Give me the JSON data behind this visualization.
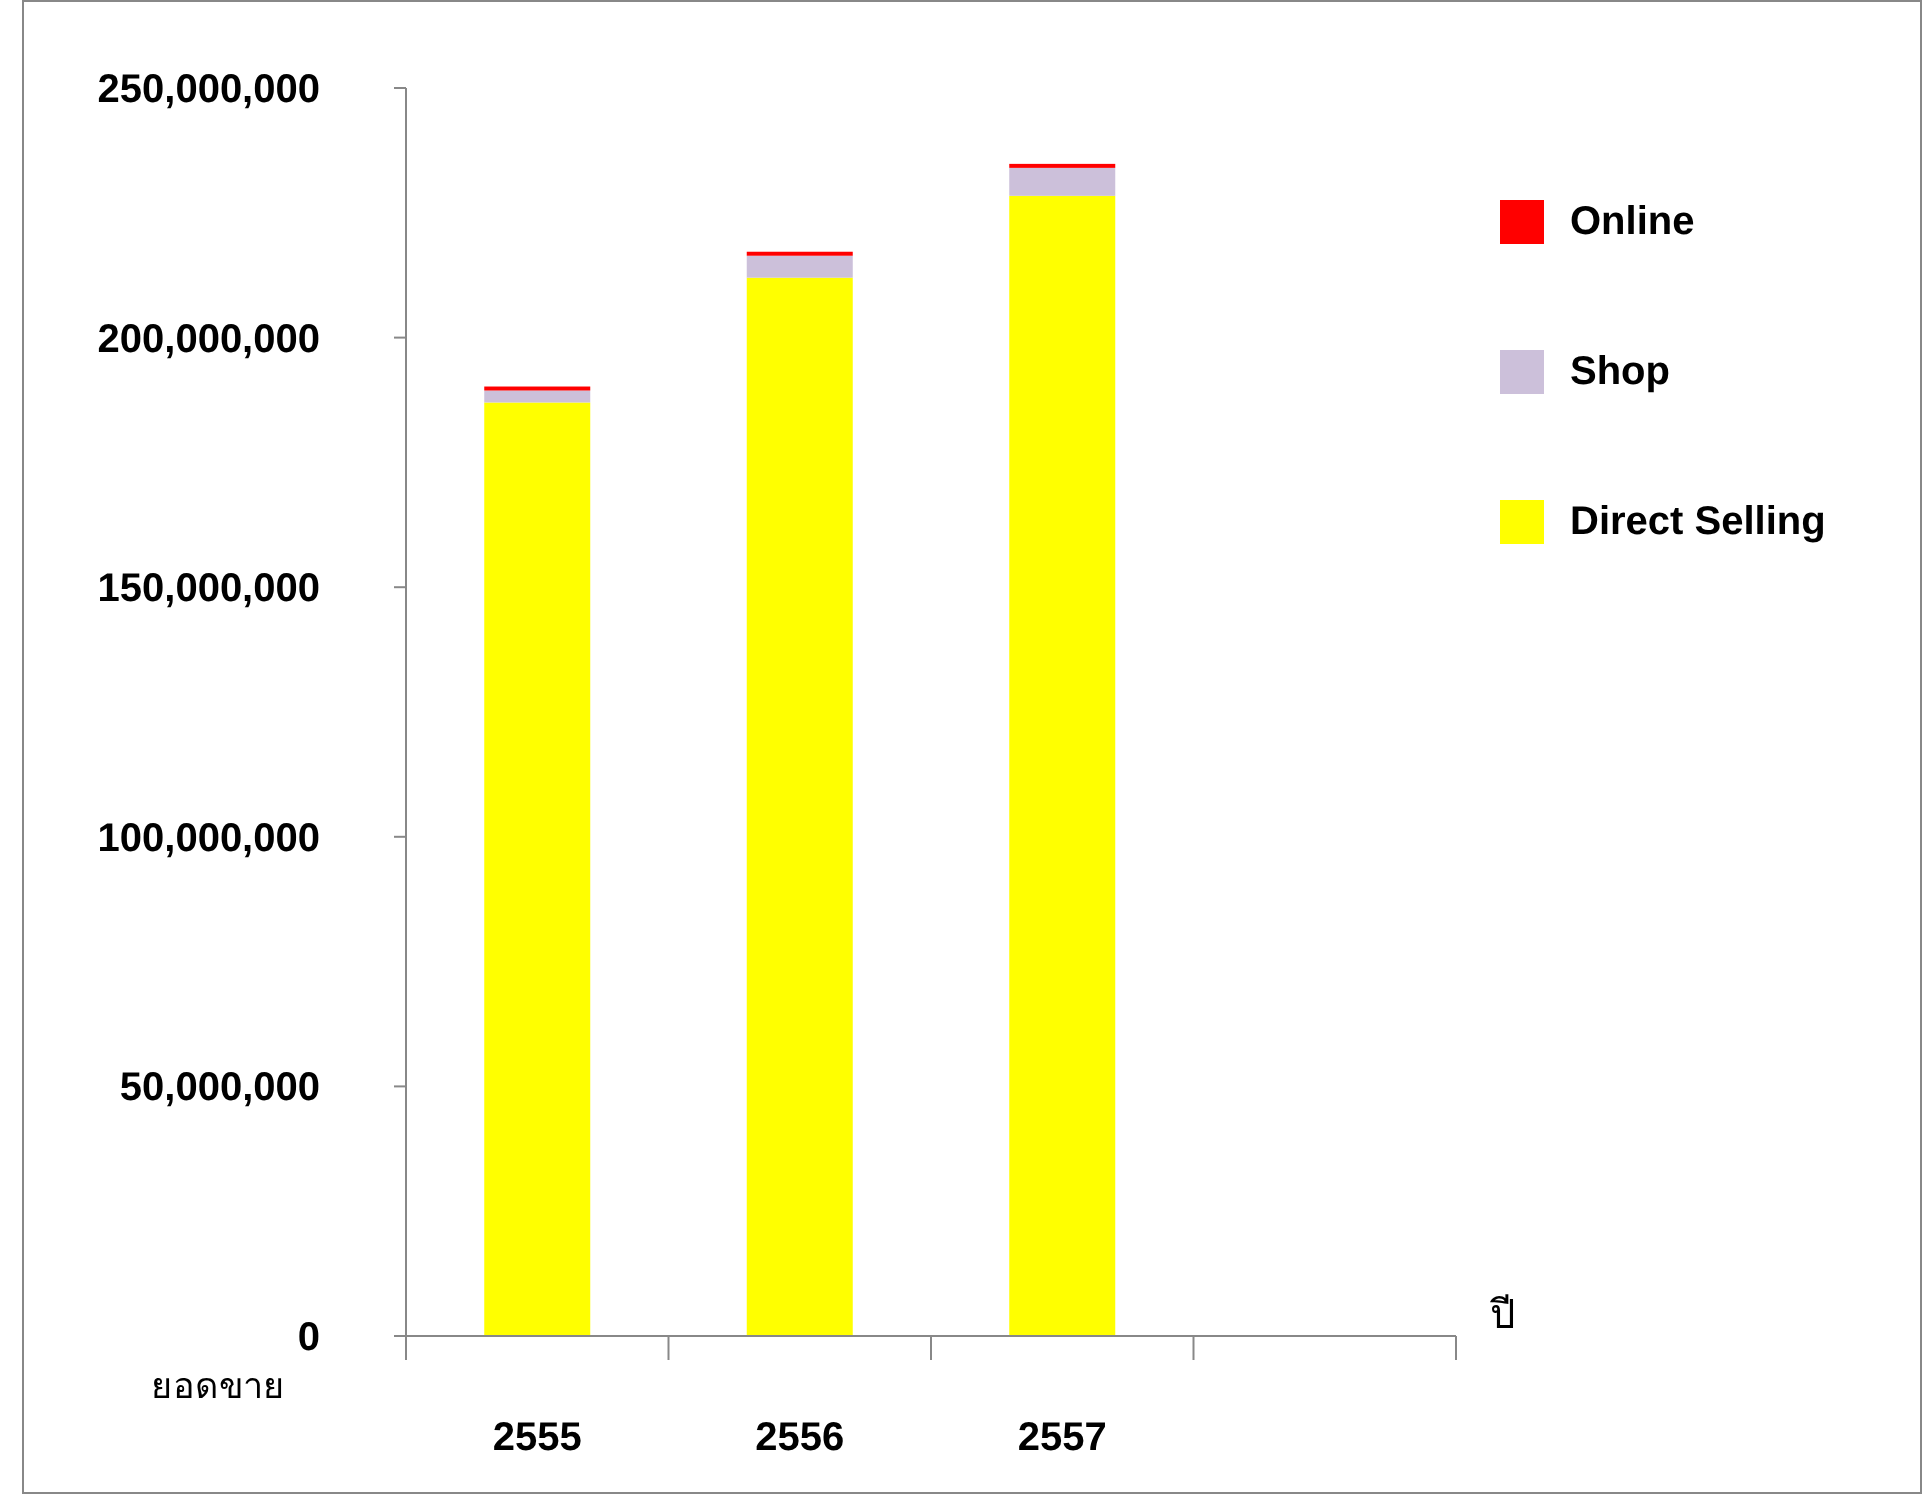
{
  "chart_data": {
    "type": "bar",
    "stacked": true,
    "xlabel": "ปี",
    "ylabel": "ยอดขาย",
    "categories": [
      "2555",
      "2556",
      "2557",
      null
    ],
    "series": [
      {
        "name": "Direct Selling",
        "color": "#ffff00",
        "values": [
          187000000,
          212000000,
          228400000,
          null
        ]
      },
      {
        "name": "Shop",
        "color": "#ccc0da",
        "values": [
          2400000,
          4400000,
          5600000,
          null
        ]
      },
      {
        "name": "Online",
        "color": "#ff0000",
        "values": [
          800000,
          800000,
          800000,
          null
        ]
      }
    ],
    "ylim": [
      0,
      250000000
    ],
    "yticks": [
      0,
      {
        "value": 50000000,
        "label": "50,000,000"
      },
      {
        "value": 100000000,
        "label": "100,000,000"
      },
      {
        "value": 150000000,
        "label": "150,000,000"
      },
      {
        "value": 200000000,
        "label": "200,000,000"
      },
      {
        "value": 250000000,
        "label": "250,000,000"
      }
    ],
    "legend": "right",
    "grid": false
  }
}
